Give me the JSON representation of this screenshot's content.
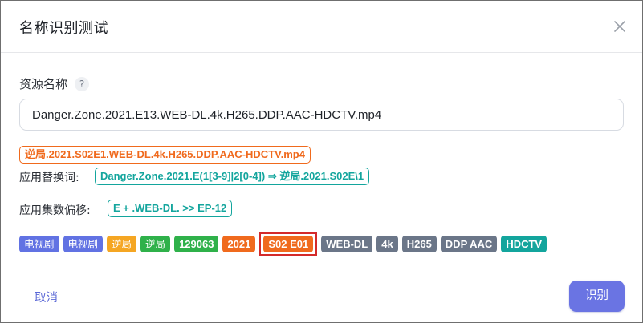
{
  "dialog": {
    "title": "名称识别测试",
    "close_icon": "close-x-icon"
  },
  "form": {
    "label": "资源名称",
    "help_icon": "?",
    "input_value": "Danger.Zone.2021.E13.WEB-DL.4k.H265.DDP.AAC-HDCTV.mp4"
  },
  "result": {
    "renamed": "逆局.2021.S02E1.WEB-DL.4k.H265.DDP.AAC-HDCTV.mp4",
    "replace_label": "应用替换词:",
    "replace_rule": "Danger.Zone.2021.E(1[3-9]|2[0-4]) ⇒ 逆局.2021.S02E\\1",
    "offset_label": "应用集数偏移:",
    "offset_rule": "E + .WEB-DL. >> EP-12"
  },
  "tags": [
    {
      "label": "电视剧",
      "color": "#6172e3"
    },
    {
      "label": "电视剧",
      "color": "#6172e3"
    },
    {
      "label": "逆局",
      "color": "#f5a623"
    },
    {
      "label": "逆局",
      "color": "#2fb14a"
    },
    {
      "label": "129063",
      "color": "#2fb14a"
    },
    {
      "label": "2021",
      "color": "#f06a1d"
    },
    {
      "label": "S02 E01",
      "color": "#f06a1d",
      "highlighted": true
    },
    {
      "label": "WEB-DL",
      "color": "#6b7688"
    },
    {
      "label": "4k",
      "color": "#6b7688"
    },
    {
      "label": "H265",
      "color": "#6b7688"
    },
    {
      "label": "DDP AAC",
      "color": "#6b7688"
    },
    {
      "label": "HDCTV",
      "color": "#13a59d"
    }
  ],
  "footer": {
    "cancel_label": "取消",
    "submit_label": "识别"
  }
}
